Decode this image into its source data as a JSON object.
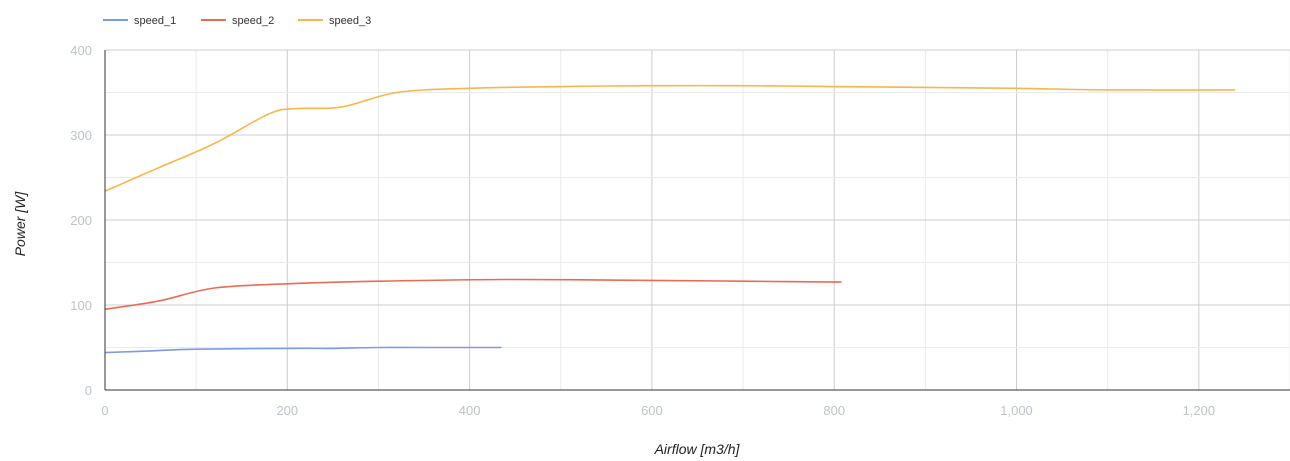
{
  "chart_data": {
    "type": "line",
    "title": "",
    "xlabel": "Airflow [m3/h]",
    "ylabel": "Power [W]",
    "xlim": [
      0,
      1300
    ],
    "ylim": [
      0,
      400
    ],
    "x_ticks": [
      {
        "value": 0,
        "label": "0"
      },
      {
        "value": 200,
        "label": "200"
      },
      {
        "value": 400,
        "label": "400"
      },
      {
        "value": 600,
        "label": "600"
      },
      {
        "value": 800,
        "label": "800"
      },
      {
        "value": 1000,
        "label": "1,000"
      },
      {
        "value": 1200,
        "label": "1,200"
      }
    ],
    "y_ticks": [
      {
        "value": 0,
        "label": "0"
      },
      {
        "value": 100,
        "label": "100"
      },
      {
        "value": 200,
        "label": "200"
      },
      {
        "value": 300,
        "label": "300"
      },
      {
        "value": 400,
        "label": "400"
      }
    ],
    "minor_x_step": 100,
    "minor_y_step": 50,
    "grid": true,
    "legend_position": "top-left",
    "series": [
      {
        "name": "speed_1",
        "color": "#7b9be3",
        "points": [
          [
            0,
            44
          ],
          [
            50,
            46
          ],
          [
            100,
            48
          ],
          [
            200,
            49
          ],
          [
            250,
            49
          ],
          [
            300,
            50
          ],
          [
            350,
            50
          ],
          [
            435,
            50
          ]
        ]
      },
      {
        "name": "speed_2",
        "color": "#e96a55",
        "points": [
          [
            0,
            95
          ],
          [
            60,
            105
          ],
          [
            120,
            120
          ],
          [
            200,
            125
          ],
          [
            300,
            128
          ],
          [
            440,
            130
          ],
          [
            600,
            129
          ],
          [
            700,
            128
          ],
          [
            808,
            127
          ]
        ]
      },
      {
        "name": "speed_3",
        "color": "#f9b54a",
        "points": [
          [
            0,
            234
          ],
          [
            60,
            262
          ],
          [
            120,
            290
          ],
          [
            180,
            325
          ],
          [
            210,
            331
          ],
          [
            260,
            333
          ],
          [
            320,
            350
          ],
          [
            400,
            355
          ],
          [
            500,
            357
          ],
          [
            600,
            358
          ],
          [
            700,
            358
          ],
          [
            800,
            357
          ],
          [
            900,
            356
          ],
          [
            1000,
            355
          ],
          [
            1100,
            353
          ],
          [
            1240,
            353
          ]
        ]
      }
    ]
  }
}
